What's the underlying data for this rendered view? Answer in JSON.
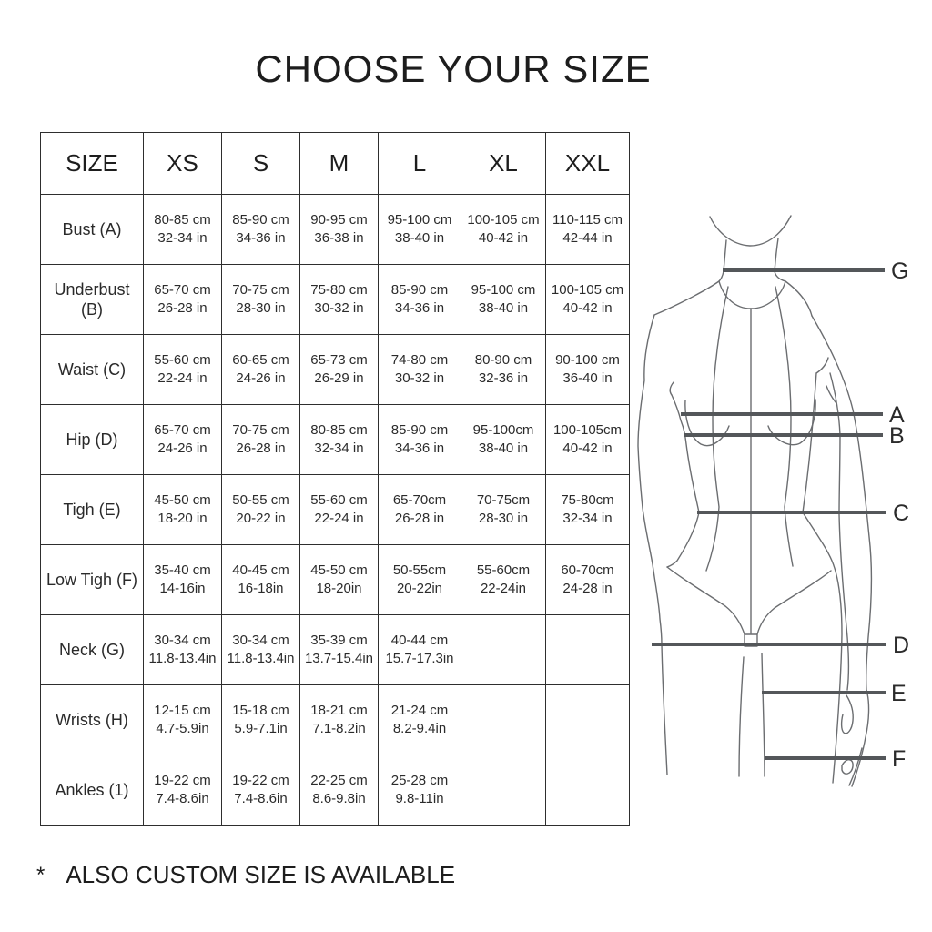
{
  "title": "CHOOSE YOUR SIZE",
  "footnote": {
    "marker": "*",
    "text": "ALSO CUSTOM SIZE IS AVAILABLE"
  },
  "table": {
    "columns": [
      "SIZE",
      "XS",
      "S",
      "M",
      "L",
      "XL",
      "XXL"
    ],
    "rows": [
      {
        "label": "Bust (A)",
        "cells": [
          {
            "cm": "80-85 cm",
            "in": "32-34 in"
          },
          {
            "cm": "85-90 cm",
            "in": "34-36 in"
          },
          {
            "cm": "90-95 cm",
            "in": "36-38 in"
          },
          {
            "cm": "95-100 cm",
            "in": "38-40 in"
          },
          {
            "cm": "100-105 cm",
            "in": "40-42 in"
          },
          {
            "cm": "110-115 cm",
            "in": "42-44 in"
          }
        ]
      },
      {
        "label": "Underbust (B)",
        "cells": [
          {
            "cm": "65-70 cm",
            "in": "26-28 in"
          },
          {
            "cm": "70-75 cm",
            "in": "28-30 in"
          },
          {
            "cm": "75-80 cm",
            "in": "30-32 in"
          },
          {
            "cm": "85-90 cm",
            "in": "34-36 in"
          },
          {
            "cm": "95-100 cm",
            "in": "38-40 in"
          },
          {
            "cm": "100-105 cm",
            "in": "40-42 in"
          }
        ]
      },
      {
        "label": "Waist (C)",
        "cells": [
          {
            "cm": "55-60 cm",
            "in": "22-24 in"
          },
          {
            "cm": "60-65 cm",
            "in": "24-26 in"
          },
          {
            "cm": "65-73 cm",
            "in": "26-29 in"
          },
          {
            "cm": "74-80 cm",
            "in": "30-32 in"
          },
          {
            "cm": "80-90 cm",
            "in": "32-36 in"
          },
          {
            "cm": "90-100 cm",
            "in": "36-40 in"
          }
        ]
      },
      {
        "label": "Hip (D)",
        "cells": [
          {
            "cm": "65-70 cm",
            "in": "24-26 in"
          },
          {
            "cm": "70-75 cm",
            "in": "26-28 in"
          },
          {
            "cm": "80-85 cm",
            "in": "32-34 in"
          },
          {
            "cm": "85-90 cm",
            "in": "34-36 in"
          },
          {
            "cm": "95-100cm",
            "in": "38-40 in"
          },
          {
            "cm": "100-105cm",
            "in": "40-42 in"
          }
        ]
      },
      {
        "label": "Tigh (E)",
        "cells": [
          {
            "cm": "45-50 cm",
            "in": "18-20 in"
          },
          {
            "cm": "50-55 cm",
            "in": "20-22 in"
          },
          {
            "cm": "55-60 cm",
            "in": "22-24 in"
          },
          {
            "cm": "65-70cm",
            "in": "26-28 in"
          },
          {
            "cm": "70-75cm",
            "in": "28-30 in"
          },
          {
            "cm": "75-80cm",
            "in": "32-34 in"
          }
        ]
      },
      {
        "label": "Low Tigh (F)",
        "cells": [
          {
            "cm": "35-40 cm",
            "in": "14-16in"
          },
          {
            "cm": "40-45 cm",
            "in": "16-18in"
          },
          {
            "cm": "45-50 cm",
            "in": "18-20in"
          },
          {
            "cm": "50-55cm",
            "in": "20-22in"
          },
          {
            "cm": "55-60cm",
            "in": "22-24in"
          },
          {
            "cm": "60-70cm",
            "in": "24-28 in"
          }
        ]
      },
      {
        "label": "Neck (G)",
        "cells": [
          {
            "cm": "30-34 cm",
            "in": "11.8-13.4in"
          },
          {
            "cm": "30-34 cm",
            "in": "11.8-13.4in"
          },
          {
            "cm": "35-39 cm",
            "in": "13.7-15.4in"
          },
          {
            "cm": "40-44 cm",
            "in": "15.7-17.3in"
          },
          null,
          null
        ]
      },
      {
        "label": "Wrists (H)",
        "cells": [
          {
            "cm": "12-15 cm",
            "in": "4.7-5.9in"
          },
          {
            "cm": "15-18 cm",
            "in": "5.9-7.1in"
          },
          {
            "cm": "18-21 cm",
            "in": "7.1-8.2in"
          },
          {
            "cm": "21-24 cm",
            "in": "8.2-9.4in"
          },
          null,
          null
        ]
      },
      {
        "label": "Ankles (1)",
        "cells": [
          {
            "cm": "19-22 cm",
            "in": "7.4-8.6in"
          },
          {
            "cm": "19-22 cm",
            "in": "7.4-8.6in"
          },
          {
            "cm": "22-25 cm",
            "in": "8.6-9.8in"
          },
          {
            "cm": "25-28 cm",
            "in": "9.8-11in"
          },
          null,
          null
        ]
      }
    ]
  },
  "figure": {
    "lines": [
      {
        "label": "G"
      },
      {
        "label": "A"
      },
      {
        "label": "B"
      },
      {
        "label": "C"
      },
      {
        "label": "D"
      },
      {
        "label": "E"
      },
      {
        "label": "F"
      }
    ],
    "sketch_color": "#6b6d70",
    "bar_color": "#54575a"
  }
}
